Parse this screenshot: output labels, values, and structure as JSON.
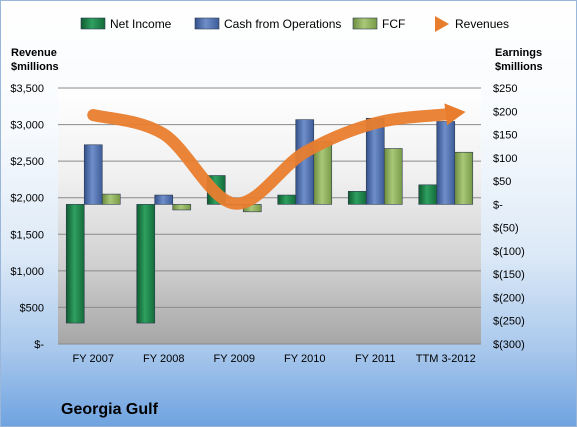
{
  "chart_data": {
    "type": "bar",
    "title": "Georgia Gulf",
    "categories": [
      "FY 2007",
      "FY 2008",
      "FY 2009",
      "FY 2010",
      "FY 2011",
      "TTM 3-2012"
    ],
    "left_axis": {
      "label": "Revenue\n$millions",
      "range": [
        0,
        3500
      ],
      "ticks": [
        "$-",
        "$500",
        "$1,000",
        "$1,500",
        "$2,000",
        "$2,500",
        "$3,000",
        "$3,500"
      ]
    },
    "right_axis": {
      "label": "Earnings\n$millions",
      "range": [
        -300,
        250
      ],
      "ticks": [
        "$(300)",
        "$(250)",
        "$(200)",
        "$(150)",
        "$(100)",
        "$(50)",
        "$-",
        "$50",
        "$100",
        "$150",
        "$200",
        "$250"
      ]
    },
    "series": [
      {
        "name": "Net Income",
        "axis": "right",
        "kind": "bar",
        "color": "#1e8449",
        "values": [
          -255,
          -255,
          62,
          20,
          28,
          42
        ]
      },
      {
        "name": "Cash from Operations",
        "axis": "right",
        "kind": "bar",
        "color": "#4f6fad",
        "values": [
          128,
          20,
          0,
          182,
          185,
          178
        ]
      },
      {
        "name": "FCF",
        "axis": "right",
        "kind": "bar",
        "color": "#8fb05a",
        "values": [
          22,
          -12,
          -16,
          135,
          120,
          112
        ]
      },
      {
        "name": "Revenues",
        "axis": "left",
        "kind": "line",
        "color": "#e87d2e",
        "values": [
          3130,
          2870,
          1920,
          2620,
          3020,
          3140
        ]
      }
    ],
    "legend_position": "top",
    "grid": true
  }
}
